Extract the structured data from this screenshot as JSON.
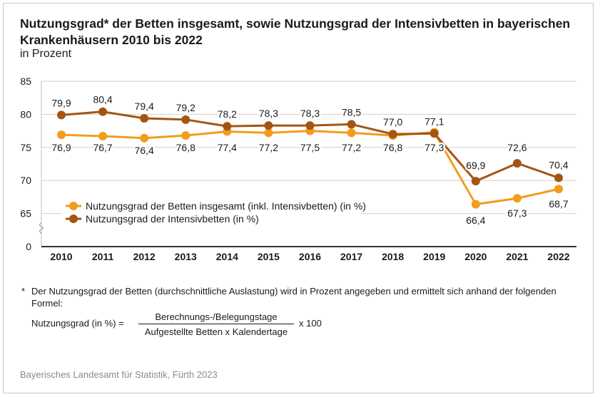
{
  "chart_data": {
    "type": "line",
    "title": "Nutzungsgrad* der Betten insgesamt, sowie Nutzungsgrad der Intensivbetten in bayerischen Krankenhäusern 2010 bis 2022",
    "subtitle": "in Prozent",
    "xlabel": "",
    "ylabel": "",
    "x": [
      "2010",
      "2011",
      "2012",
      "2013",
      "2014",
      "2015",
      "2016",
      "2017",
      "2018",
      "2019",
      "2020",
      "2021",
      "2022"
    ],
    "y_ticks": [
      "85",
      "80",
      "75",
      "70",
      "65",
      "0"
    ],
    "y_tick_values": [
      85,
      80,
      75,
      70,
      65,
      60
    ],
    "ylim": [
      60,
      85
    ],
    "axis_break": true,
    "grid": true,
    "legend_position": "lower-left",
    "series": [
      {
        "name": "Nutzungsgrad der Betten insgesamt (inkl. Intensivbetten) (in %)",
        "color": "#f39c1c",
        "values": [
          76.9,
          76.7,
          76.4,
          76.8,
          77.4,
          77.2,
          77.5,
          77.2,
          76.8,
          77.3,
          66.4,
          67.3,
          68.7
        ],
        "labels": [
          "76,9",
          "76,7",
          "76,4",
          "76,8",
          "77,4",
          "77,2",
          "77,5",
          "77,2",
          "76,8",
          "77,3",
          "66,4",
          "67,3",
          "68,7"
        ]
      },
      {
        "name": "Nutzungsgrad der Intensivbetten (in %)",
        "color": "#a45513",
        "values": [
          79.9,
          80.4,
          79.4,
          79.2,
          78.2,
          78.3,
          78.3,
          78.5,
          77.0,
          77.1,
          69.9,
          72.6,
          70.4
        ],
        "labels": [
          "79,9",
          "80,4",
          "79,4",
          "79,2",
          "78,2",
          "78,3",
          "78,3",
          "78,5",
          "77,0",
          "77,1",
          "69,9",
          "72,6",
          "70,4"
        ]
      }
    ]
  },
  "footnote": {
    "star": "*",
    "text": "Der Nutzungsgrad der Betten (durchschnittliche Auslastung) wird in Prozent angegeben und ermittelt sich anhand der folgenden Formel:",
    "formula_lhs": "Nutzungsgrad (in %) =",
    "numerator": "Berechnungs-/Belegungstage",
    "denominator": "Aufgestellte Betten x Kalendertage",
    "multiplier": "x 100"
  },
  "source": "Bayerisches Landesamt für Statistik, Fürth 2023"
}
